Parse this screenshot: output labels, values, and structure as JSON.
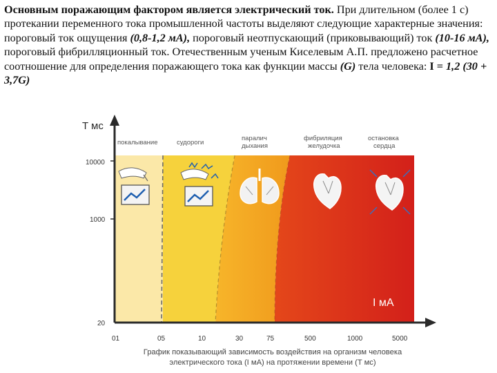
{
  "intro": {
    "bold_start": "Основным поражающим фактором является электрический ток.",
    "t1": " При длительном (более 1 с) протекании переменного тока промышленной частоты выделяют следующие характерные значения: пороговый ток ощущения ",
    "v1": "(0,8-1,2 мА),",
    "t2": " пороговый неотпускающий (приковывающий) ток ",
    "v2": "(10-16 мА),",
    "t3": " пороговый фибрилляционный ток. Отечественным ученым Киселевым А.П. предложено расчетное соотношение для определения поражающего тока как функции массы ",
    "v3": "(G)",
    "t4": " тела человека: ",
    "formula_i": "I =",
    "formula": " 1,2 (30 + 3,7G)"
  },
  "chart": {
    "y_axis_label": "T мс",
    "x_axis_label": "I мА",
    "y_ticks": [
      "10000",
      "1000",
      "20"
    ],
    "x_ticks": [
      "01",
      "05",
      "10",
      "30",
      "75",
      "500",
      "1000",
      "5000"
    ],
    "zones": [
      {
        "label": "покалывание",
        "color": "#fbe7a6"
      },
      {
        "label": "судороги",
        "color": "#f6d03a"
      },
      {
        "label": "паралич дыхания",
        "color": "#f4a21f"
      },
      {
        "label": "фибрилляция желудочка",
        "color": "#eb6a1c"
      },
      {
        "label": "остановка сердца",
        "color": "#d5231a"
      }
    ],
    "zone_labels": {
      "z1": "покалывание",
      "z2": "судороги",
      "z3a": "паралич",
      "z3b": "дыхания",
      "z4a": "фибриляция",
      "z4b": "желудочка",
      "z5a": "остановка",
      "z5b": "сердца"
    },
    "caption_line1": "График показывающий зависимость воздействия на организм человека",
    "caption_line2": "электрического тока (I мА) на протяжении времени (T мс)"
  }
}
